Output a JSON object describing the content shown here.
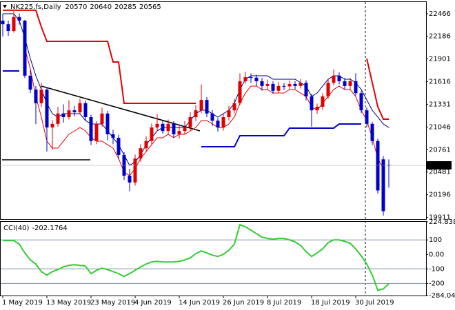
{
  "chart_data": [
    {
      "type": "candlestick",
      "title": "NK225.fs,Daily",
      "categories": [
        "1 May 2019",
        null,
        null,
        null,
        null,
        null,
        null,
        null,
        "13 May 2019",
        null,
        null,
        null,
        null,
        null,
        null,
        null,
        "23 May 2019",
        null,
        null,
        null,
        null,
        null,
        null,
        null,
        "4 Jun 2019",
        null,
        null,
        null,
        null,
        null,
        null,
        null,
        "14 Jun 2019",
        null,
        null,
        null,
        null,
        null,
        null,
        null,
        "26 Jun 2019",
        null,
        null,
        null,
        null,
        null,
        null,
        null,
        "8 Jul 2019",
        null,
        null,
        null,
        null,
        null,
        null,
        null,
        "18 Jul 2019",
        null,
        null,
        null,
        null,
        null,
        null,
        null,
        "30 Jul 2019",
        null,
        null,
        null,
        null,
        null,
        null
      ],
      "open": [
        22380,
        22335,
        22250,
        22425,
        22380,
        21690,
        21515,
        21345,
        21515,
        21040,
        21085,
        21215,
        21170,
        21255,
        21230,
        21345,
        21170,
        20870,
        21085,
        21215,
        20955,
        20910,
        20695,
        20435,
        20350,
        20650,
        20780,
        20870,
        21040,
        21085,
        20995,
        21085,
        20955,
        20995,
        21040,
        21170,
        21255,
        21385,
        21215,
        21125,
        21040,
        21170,
        21255,
        21345,
        21620,
        21670,
        21665,
        21620,
        21560,
        21585,
        21500,
        21560,
        21555,
        21585,
        21560,
        21600,
        21430,
        21255,
        21300,
        21430,
        21600,
        21690,
        21620,
        21560,
        21620,
        21470,
        21255,
        21085,
        20870,
        20640,
        20570
      ],
      "high": [
        22466,
        22380,
        22500,
        22470,
        22390,
        21760,
        21560,
        21600,
        21540,
        21130,
        21300,
        21330,
        21380,
        21310,
        21400,
        21380,
        21200,
        21120,
        21290,
        21250,
        21010,
        20950,
        20730,
        20520,
        20700,
        20830,
        20930,
        21090,
        21210,
        21130,
        21140,
        21120,
        21060,
        21120,
        21230,
        21320,
        21580,
        21420,
        21260,
        21160,
        21220,
        21310,
        21400,
        21720,
        21740,
        21720,
        21700,
        21660,
        21640,
        21620,
        21610,
        21600,
        21630,
        21620,
        21650,
        21630,
        21460,
        21340,
        21470,
        21650,
        21770,
        21730,
        21660,
        21660,
        21720,
        21500,
        21290,
        21110,
        20900,
        20680,
        20640
      ],
      "low": [
        22180,
        22190,
        22230,
        22330,
        21660,
        21470,
        21080,
        21300,
        20740,
        20760,
        21050,
        21100,
        21140,
        21180,
        21200,
        21120,
        20820,
        20830,
        21050,
        20880,
        20830,
        20640,
        20380,
        20240,
        20310,
        20610,
        20740,
        20830,
        21000,
        20960,
        20950,
        20910,
        20900,
        20950,
        21000,
        21120,
        21220,
        21170,
        21060,
        20990,
        21000,
        21130,
        21220,
        21320,
        21590,
        21600,
        21560,
        21500,
        21520,
        21460,
        21470,
        21510,
        21520,
        21520,
        21530,
        21380,
        21050,
        21210,
        21260,
        21400,
        21570,
        21580,
        21520,
        21520,
        21440,
        21220,
        21040,
        20820,
        20210,
        19935,
        20285
      ],
      "close": [
        22335,
        22250,
        22425,
        22380,
        21690,
        21515,
        21345,
        21515,
        21040,
        21085,
        21215,
        21170,
        21255,
        21230,
        21345,
        21170,
        20870,
        21085,
        21215,
        20955,
        20910,
        20695,
        20435,
        20350,
        20650,
        20780,
        20870,
        21040,
        21085,
        20995,
        21085,
        20955,
        20995,
        21040,
        21170,
        21255,
        21385,
        21215,
        21125,
        21040,
        21170,
        21255,
        21345,
        21620,
        21670,
        21665,
        21620,
        21560,
        21585,
        21500,
        21560,
        21555,
        21585,
        21560,
        21600,
        21430,
        21255,
        21300,
        21430,
        21600,
        21690,
        21620,
        21560,
        21620,
        21470,
        21255,
        21085,
        20870,
        20250,
        19990,
        20565
      ],
      "up_color": "#e00000",
      "down_color": "#0000c8",
      "series": [
        {
          "color": "#000080",
          "width": 1,
          "values": [
            22466,
            22466,
            22466,
            22380,
            22164,
            21904,
            21688,
            21516,
            21343,
            21213,
            21170,
            21213,
            21213,
            21213,
            21213,
            21127,
            21084,
            21084,
            21084,
            20997,
            20911,
            20824,
            20695,
            20565,
            20608,
            20695,
            20824,
            20911,
            20997,
            21040,
            21040,
            21040,
            21040,
            21040,
            21127,
            21213,
            21256,
            21256,
            21213,
            21170,
            21213,
            21256,
            21343,
            21516,
            21645,
            21688,
            21688,
            21688,
            21688,
            21645,
            21645,
            21645,
            21645,
            21645,
            21602,
            21559,
            21429,
            21472,
            21559,
            21645,
            21688,
            21688,
            21645,
            21645,
            21602,
            21516,
            21386,
            21256,
            21170,
            21084,
            21040
          ]
        },
        {
          "color": "#e00000",
          "width": 1,
          "values": [
            null,
            null,
            null,
            null,
            22034,
            21775,
            21429,
            21170,
            20868,
            20781,
            20781,
            20868,
            20954,
            20997,
            21040,
            20997,
            20911,
            20868,
            20868,
            20824,
            20781,
            20652,
            20479,
            20436,
            20522,
            20652,
            20738,
            20824,
            20911,
            20911,
            20954,
            20911,
            20954,
            20954,
            20997,
            21040,
            21127,
            21127,
            21084,
            21040,
            21040,
            21084,
            21170,
            21343,
            21472,
            21559,
            21559,
            21516,
            21516,
            21472,
            21472,
            21472,
            21516,
            21516,
            21472,
            21429,
            21300,
            21256,
            21343,
            21429,
            21516,
            21559,
            21516,
            21516,
            21429,
            21256,
            21127,
            20911,
            20652,
            20522,
            null
          ]
        },
        {
          "color": "#e00000",
          "width": 2,
          "values": [
            22510,
            22510,
            22510,
            22510,
            22510,
            22510,
            22510,
            22300,
            22120,
            22120,
            22120,
            22120,
            22120,
            22120,
            22120,
            22120,
            22120,
            22120,
            22120,
            22120,
            21861,
            21861,
            21343,
            21343,
            21343,
            21343,
            21343,
            21343,
            21343,
            21343,
            21343,
            21343,
            21343,
            21343,
            21343,
            21343,
            null,
            null,
            null,
            null,
            null,
            null,
            null,
            null,
            null,
            null,
            null,
            null,
            null,
            null,
            null,
            null,
            null,
            null,
            null,
            null,
            null,
            null,
            null,
            null,
            null,
            null,
            null,
            null,
            null,
            null,
            21904,
            21602,
            21300,
            21144,
            21144
          ]
        },
        {
          "color": "#0000c8",
          "width": 2,
          "values": [
            21749,
            21749,
            21749,
            21749,
            null,
            null,
            null,
            null,
            null,
            null,
            null,
            null,
            null,
            null,
            null,
            null,
            null,
            null,
            null,
            null,
            null,
            null,
            null,
            null,
            null,
            null,
            null,
            null,
            null,
            null,
            null,
            null,
            null,
            null,
            null,
            null,
            20798,
            20798,
            20798,
            20798,
            20798,
            20798,
            20798,
            20937,
            20937,
            20937,
            20937,
            20937,
            20937,
            20937,
            20937,
            20937,
            21032,
            21032,
            21032,
            21032,
            21032,
            21032,
            21032,
            21032,
            21032,
            21084,
            21084,
            21084,
            21084,
            21084,
            null,
            null,
            null,
            null,
            null
          ]
        }
      ],
      "ylim": [
        19891,
        22613
      ],
      "yticks": [
        22466,
        22186,
        21901,
        21616,
        21331,
        21046,
        20761,
        20481,
        20196,
        19911
      ]
    },
    {
      "type": "line",
      "title": "CCI(40)",
      "color": "#32cd32",
      "values": [
        95,
        95,
        95,
        71,
        10,
        -38,
        -67,
        -119,
        -143,
        -119,
        -105,
        -86,
        -76,
        -71,
        -76,
        -81,
        -133,
        -110,
        -95,
        -105,
        -119,
        -133,
        -152,
        -133,
        -110,
        -86,
        -67,
        -52,
        -48,
        -52,
        -52,
        -52,
        -48,
        -38,
        -24,
        5,
        24,
        10,
        -5,
        -14,
        0,
        29,
        71,
        205,
        190,
        167,
        143,
        119,
        110,
        105,
        110,
        110,
        100,
        86,
        62,
        19,
        -14,
        10,
        38,
        81,
        100,
        100,
        90,
        76,
        38,
        -10,
        -67,
        -143,
        -248,
        -238,
        -202.1764
      ],
      "levels": [
        100,
        -100,
        -200
      ],
      "level_color": "#7b8fa8",
      "ylim": [
        -284.044,
        224.8386
      ],
      "yticks": [
        224.8386,
        100,
        {
          "value": 0,
          "label": "0.00"
        },
        -100,
        -200,
        -284.044
      ]
    }
  ]
}
